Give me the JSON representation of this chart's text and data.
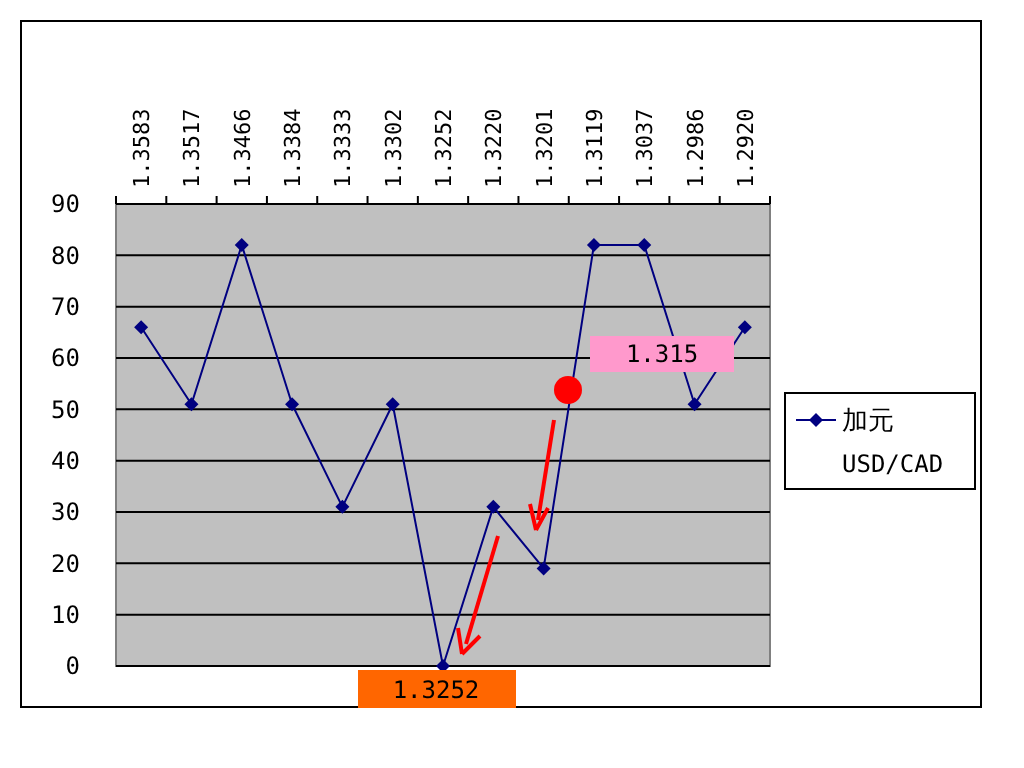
{
  "chart_data": {
    "type": "line",
    "categories": [
      "1.3583",
      "1.3517",
      "1.3466",
      "1.3384",
      "1.3333",
      "1.3302",
      "1.3252",
      "1.3220",
      "1.3201",
      "1.3119",
      "1.3037",
      "1.2986",
      "1.2920"
    ],
    "series": [
      {
        "name": "加元 USD/CAD",
        "color": "#000080",
        "values": [
          66,
          51,
          82,
          51,
          31,
          51,
          0,
          31,
          19,
          82,
          82,
          51,
          66
        ]
      }
    ],
    "ylim": [
      0,
      90
    ],
    "yticks": [
      0,
      10,
      20,
      30,
      40,
      50,
      60,
      70,
      80,
      90
    ],
    "grid": "y",
    "legend": "right",
    "marker": "diamond",
    "line_style": "solid",
    "annotations": [
      "1.315",
      "1.3252"
    ]
  }
}
